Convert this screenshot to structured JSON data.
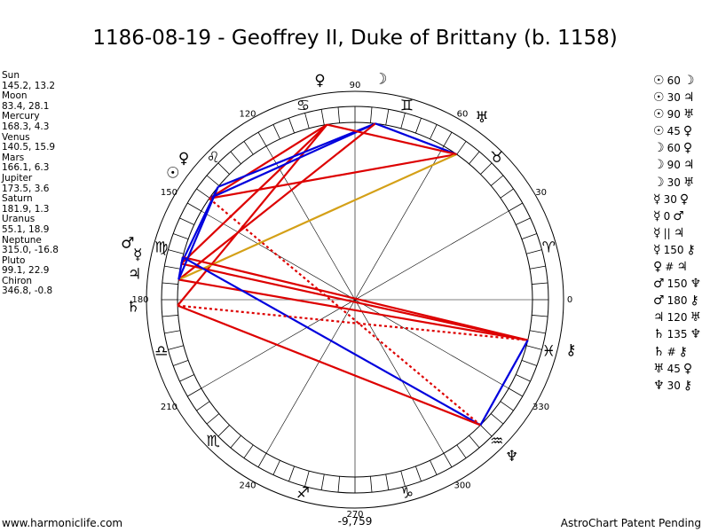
{
  "title": "1186-08-19 - Geoffrey II, Duke of Brittany (b. 1158)",
  "footer": {
    "left": "www.harmoniclife.com",
    "right": "AstroChart Patent Pending",
    "bottom_value": "-9,759"
  },
  "planets": [
    {
      "name": "Sun",
      "coords": "145.2, 13.2",
      "glyph": "☉",
      "lon": 145.2
    },
    {
      "name": "Moon",
      "coords": "83.4, 28.1",
      "glyph": "☽",
      "lon": 83.4
    },
    {
      "name": "Mercury",
      "coords": "168.3, 4.3",
      "glyph": "☿",
      "lon": 168.3
    },
    {
      "name": "Venus",
      "coords": "140.5, 15.9",
      "glyph": "♀",
      "lon": 140.5
    },
    {
      "name": "Mars",
      "coords": "166.1, 6.3",
      "glyph": "♂",
      "lon": 166.1
    },
    {
      "name": "Jupiter",
      "coords": "173.5, 3.6",
      "glyph": "♃",
      "lon": 173.5
    },
    {
      "name": "Saturn",
      "coords": "181.9, 1.3",
      "glyph": "♄",
      "lon": 181.9
    },
    {
      "name": "Uranus",
      "coords": "55.1, 18.9",
      "glyph": "♅",
      "lon": 55.1
    },
    {
      "name": "Neptune",
      "coords": "315.0, -16.8",
      "glyph": "♆",
      "lon": 315.0
    },
    {
      "name": "Pluto",
      "coords": "99.1, 22.9",
      "glyph": "♀",
      "lon": 99.1
    },
    {
      "name": "Chiron",
      "coords": "346.8, -0.8",
      "glyph": "⚷",
      "lon": 346.8
    }
  ],
  "aspects": [
    {
      "p1": "☉",
      "label": "60",
      "p2": "☽"
    },
    {
      "p1": "☉",
      "label": "30",
      "p2": "♃"
    },
    {
      "p1": "☉",
      "label": "90",
      "p2": "♅"
    },
    {
      "p1": "☉",
      "label": "45",
      "p2": "♀"
    },
    {
      "p1": "☽",
      "label": "60",
      "p2": "♀"
    },
    {
      "p1": "☽",
      "label": "90",
      "p2": "♃"
    },
    {
      "p1": "☽",
      "label": "30",
      "p2": "♅"
    },
    {
      "p1": "☿",
      "label": "30",
      "p2": "♀"
    },
    {
      "p1": "☿",
      "label": "0",
      "p2": "♂"
    },
    {
      "p1": "☿",
      "label": "||",
      "p2": "♃"
    },
    {
      "p1": "☿",
      "label": "150",
      "p2": "⚷"
    },
    {
      "p1": "♀",
      "label": "#",
      "p2": "♃"
    },
    {
      "p1": "♂",
      "label": "150",
      "p2": "♆"
    },
    {
      "p1": "♂",
      "label": "180",
      "p2": "⚷"
    },
    {
      "p1": "♃",
      "label": "120",
      "p2": "♅"
    },
    {
      "p1": "♄",
      "label": "135",
      "p2": "♆"
    },
    {
      "p1": "♄",
      "label": "#",
      "p2": "⚷"
    },
    {
      "p1": "♅",
      "label": "45",
      "p2": "♀"
    },
    {
      "p1": "♆",
      "label": "30",
      "p2": "⚷"
    }
  ],
  "degree_labels": [
    {
      "deg": 0,
      "text": "0"
    },
    {
      "deg": 30,
      "text": "30"
    },
    {
      "deg": 60,
      "text": "60"
    },
    {
      "deg": 90,
      "text": "90"
    },
    {
      "deg": 120,
      "text": "120"
    },
    {
      "deg": 150,
      "text": "150"
    },
    {
      "deg": 180,
      "text": "180"
    },
    {
      "deg": 210,
      "text": "210"
    },
    {
      "deg": 240,
      "text": "240"
    },
    {
      "deg": 270,
      "text": "270"
    },
    {
      "deg": 300,
      "text": "300"
    },
    {
      "deg": 330,
      "text": "330"
    }
  ],
  "zodiac_signs": [
    {
      "deg": 15,
      "glyph": "♈"
    },
    {
      "deg": 45,
      "glyph": "♉"
    },
    {
      "deg": 75,
      "glyph": "♊"
    },
    {
      "deg": 105,
      "glyph": "♋"
    },
    {
      "deg": 135,
      "glyph": "♌"
    },
    {
      "deg": 165,
      "glyph": "♍"
    },
    {
      "deg": 195,
      "glyph": "♎"
    },
    {
      "deg": 225,
      "glyph": "♏"
    },
    {
      "deg": 255,
      "glyph": "♐"
    },
    {
      "deg": 285,
      "glyph": "♑"
    },
    {
      "deg": 315,
      "glyph": "♒"
    },
    {
      "deg": 345,
      "glyph": "♓"
    }
  ],
  "aspect_lines": [
    {
      "a": 99.1,
      "b": 145.2,
      "color": "#dd0000",
      "style": "solid"
    },
    {
      "a": 99.1,
      "b": 168.3,
      "color": "#dd0000",
      "style": "solid"
    },
    {
      "a": 99.1,
      "b": 181.9,
      "color": "#dd0000",
      "style": "solid"
    },
    {
      "a": 83.4,
      "b": 140.5,
      "color": "#0000dd",
      "style": "solid"
    },
    {
      "a": 83.4,
      "b": 145.2,
      "color": "#0000dd",
      "style": "solid"
    },
    {
      "a": 83.4,
      "b": 173.5,
      "color": "#dd0000",
      "style": "solid"
    },
    {
      "a": 55.1,
      "b": 145.2,
      "color": "#dd0000",
      "style": "solid"
    },
    {
      "a": 55.1,
      "b": 83.4,
      "color": "#0000dd",
      "style": "solid"
    },
    {
      "a": 55.1,
      "b": 173.5,
      "color": "#d4a017",
      "style": "solid"
    },
    {
      "a": 55.1,
      "b": 99.1,
      "color": "#dd0000",
      "style": "solid"
    },
    {
      "a": 140.5,
      "b": 168.3,
      "color": "#0000dd",
      "style": "solid"
    },
    {
      "a": 168.3,
      "b": 346.8,
      "color": "#dd0000",
      "style": "solid"
    },
    {
      "a": 166.1,
      "b": 346.8,
      "color": "#dd0000",
      "style": "solid"
    },
    {
      "a": 173.5,
      "b": 346.8,
      "color": "#dd0000",
      "style": "solid"
    },
    {
      "a": 166.1,
      "b": 315.0,
      "color": "#0000dd",
      "style": "solid"
    },
    {
      "a": 181.9,
      "b": 315.0,
      "color": "#dd0000",
      "style": "solid"
    },
    {
      "a": 181.9,
      "b": 346.8,
      "color": "#dd0000",
      "style": "dotted"
    },
    {
      "a": 145.2,
      "b": 315.0,
      "color": "#dd0000",
      "style": "dotted"
    },
    {
      "a": 315.0,
      "b": 346.8,
      "color": "#0000dd",
      "style": "solid"
    },
    {
      "a": 166.1,
      "b": 173.5,
      "color": "#0000dd",
      "style": "solid"
    },
    {
      "a": 140.5,
      "b": 173.5,
      "color": "#0000dd",
      "style": "solid"
    }
  ]
}
